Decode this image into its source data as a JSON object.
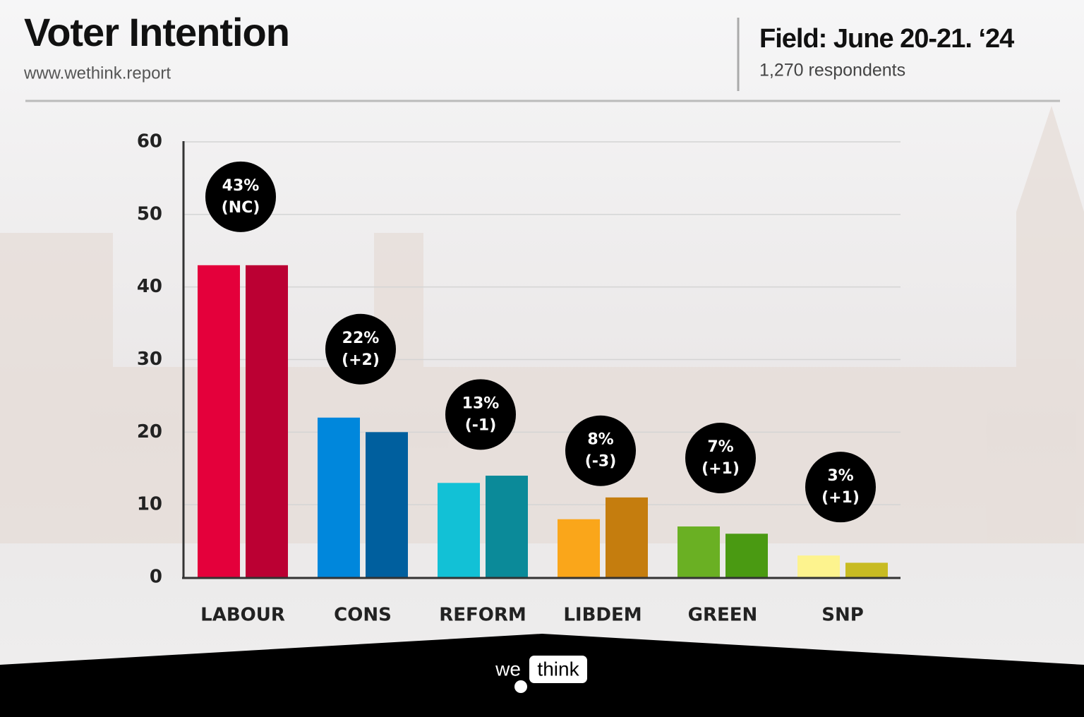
{
  "chart_data": {
    "type": "bar",
    "title": "Voter Intention",
    "subtitle": "www.wethink.report",
    "field": "Field: June 20-21. ‘24",
    "respondents": "1,270 respondents",
    "categories": [
      "LABOUR",
      "CONS",
      "REFORM",
      "LIBDEM",
      "GREEN",
      "SNP"
    ],
    "series": [
      {
        "colors": [
          "#e4003b",
          "#0087dc",
          "#12c1d6",
          "#faa61a",
          "#6ab023",
          "#fdf38e"
        ],
        "values": [
          43,
          22,
          13,
          8,
          7,
          3
        ],
        "value_labels": [
          "43%",
          "22%",
          "13%",
          "8%",
          "7%",
          "3%"
        ],
        "change_labels": [
          "(NC)",
          "(+2)",
          "(-1)",
          "(-3)",
          "(+1)",
          "(+1)"
        ]
      },
      {
        "colors": [
          "#bb0033",
          "#005f9e",
          "#0b8a99",
          "#c57d0e",
          "#4a9a12",
          "#c8bb22"
        ],
        "values": [
          43,
          20,
          14,
          11,
          6,
          2
        ]
      }
    ],
    "ylim": [
      0,
      60
    ],
    "yticks": [
      0,
      10,
      20,
      30,
      40,
      50,
      60
    ],
    "grid": true
  },
  "logo": {
    "left": "we",
    "right": "think"
  }
}
